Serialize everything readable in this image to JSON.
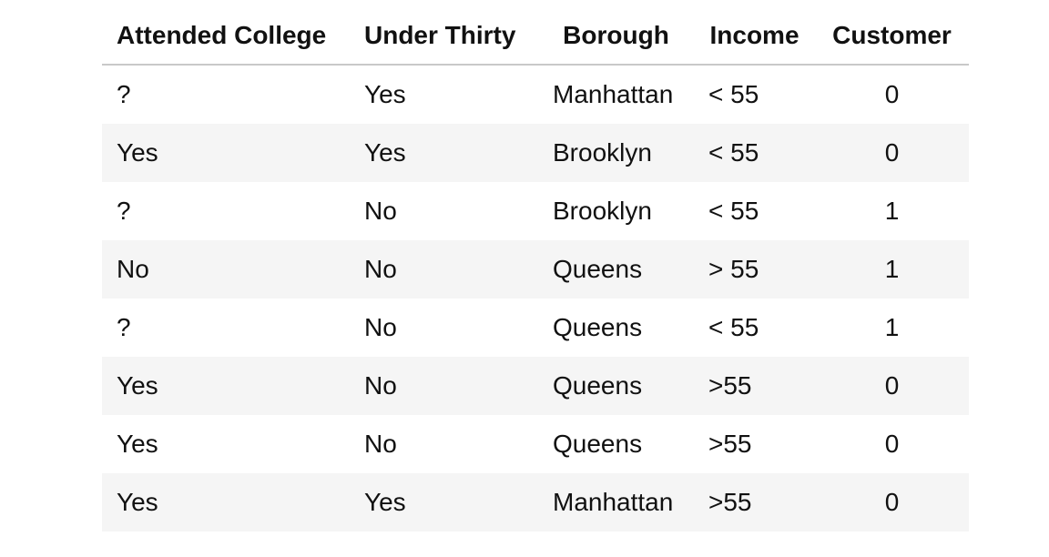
{
  "table": {
    "headers": [
      "Attended College",
      "Under Thirty",
      "Borough",
      "Income",
      "Customer"
    ],
    "rows": [
      [
        "?",
        "Yes",
        "Manhattan",
        "< 55",
        "0"
      ],
      [
        "Yes",
        "Yes",
        "Brooklyn",
        "< 55",
        "0"
      ],
      [
        "?",
        "No",
        "Brooklyn",
        "< 55",
        "1"
      ],
      [
        "No",
        "No",
        "Queens",
        "> 55",
        "1"
      ],
      [
        "?",
        "No",
        "Queens",
        "< 55",
        "1"
      ],
      [
        "Yes",
        "No",
        "Queens",
        ">55",
        "0"
      ],
      [
        "Yes",
        "No",
        "Queens",
        ">55",
        "0"
      ],
      [
        "Yes",
        "Yes",
        "Manhattan",
        ">55",
        "0"
      ]
    ]
  }
}
